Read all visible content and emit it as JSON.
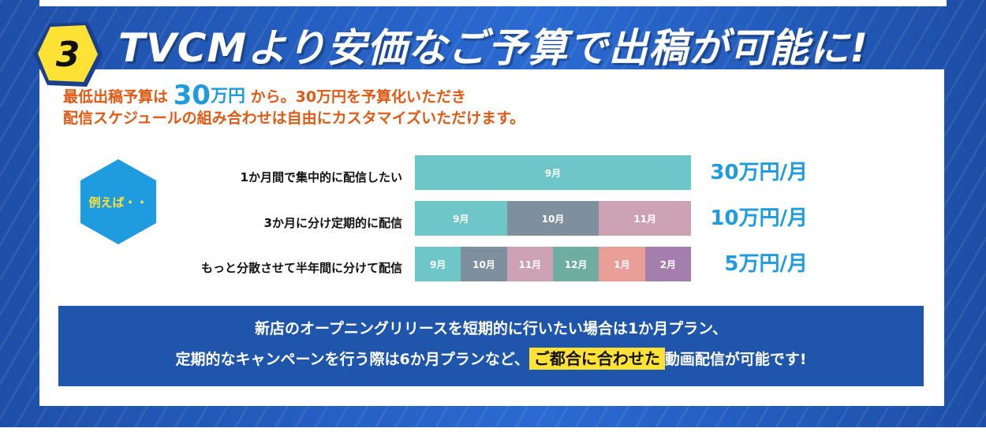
{
  "badge": {
    "number": "3"
  },
  "heading": "TVCMより安価なご予算で出稿が可能に!",
  "intro": {
    "line1_a": "最低出稿予算は",
    "line1_amount": "30",
    "line1_unit": "万円",
    "line1_b": "から。30万円を予算化いただき",
    "line2": "配信スケジュールの組み合わせは自由にカスタマイズいただけます。"
  },
  "example_label": "例えば・・",
  "plans": [
    {
      "label": "1か月間で集中的に配信したい",
      "price": "30万円/月",
      "segments": [
        {
          "label": "9月",
          "color": "#6ec6c8"
        }
      ]
    },
    {
      "label": "3か月に分け定期的に配信",
      "price": "10万円/月",
      "segments": [
        {
          "label": "9月",
          "color": "#6ec6c8"
        },
        {
          "label": "10月",
          "color": "#7e909d"
        },
        {
          "label": "11月",
          "color": "#cda2b2"
        }
      ]
    },
    {
      "label": "もっと分散させて半年間に分けて配信",
      "price": "5万円/月",
      "segments": [
        {
          "label": "9月",
          "color": "#6ec6c8"
        },
        {
          "label": "10月",
          "color": "#7e909d"
        },
        {
          "label": "11月",
          "color": "#cda2b2"
        },
        {
          "label": "12月",
          "color": "#6fada0"
        },
        {
          "label": "1月",
          "color": "#e99e98"
        },
        {
          "label": "2月",
          "color": "#a47fae"
        }
      ]
    }
  ],
  "summary": {
    "line1": "新店のオープニングリリースを短期的に行いたい場合は1か月プラン、",
    "line2_a": "定期的なキャンペーンを行う際は6か月プランなど、",
    "line2_highlight": "ご都合に合わせた",
    "line2_b": "動画配信が可能です!"
  },
  "colors": {
    "background_blue": "#2a6ad2",
    "accent_orange": "#e05a14",
    "accent_cyan": "#1f9be0",
    "badge_yellow": "#ffe234",
    "summary_navy": "#1f55aa"
  }
}
